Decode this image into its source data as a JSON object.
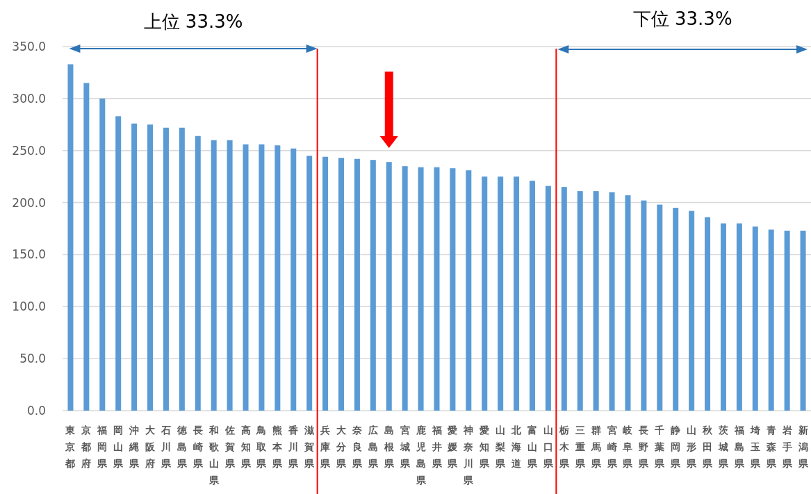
{
  "chart_data": {
    "type": "bar",
    "categories": [
      "東京都",
      "京都府",
      "福岡県",
      "岡山県",
      "沖縄県",
      "大阪府",
      "石川県",
      "徳島県",
      "長崎県",
      "和歌山県",
      "佐賀県",
      "高知県",
      "鳥取県",
      "熊本県",
      "香川県",
      "滋賀県",
      "兵庫県",
      "大分県",
      "奈良県",
      "広島県",
      "島根県",
      "宮城県",
      "鹿児島県",
      "福井県",
      "愛媛県",
      "神奈川県",
      "愛知県",
      "山梨県",
      "北海道",
      "富山県",
      "山口県",
      "栃木県",
      "三重県",
      "群馬県",
      "宮崎県",
      "岐阜県",
      "長野県",
      "千葉県",
      "静岡県",
      "山形県",
      "秋田県",
      "茨城県",
      "福島県",
      "埼玉県",
      "青森県",
      "岩手県",
      "新潟県"
    ],
    "values": [
      333,
      315,
      300,
      283,
      276,
      275,
      272,
      272,
      264,
      260,
      260,
      256,
      256,
      255,
      252,
      245,
      244,
      243,
      242,
      241,
      239,
      235,
      234,
      234,
      233,
      231,
      225,
      225,
      225,
      221,
      216,
      215,
      211,
      211,
      210,
      207,
      202,
      198,
      195,
      192,
      186,
      180,
      180,
      177,
      174,
      173,
      173
    ],
    "color": "#5b9bd5",
    "ylim": [
      0,
      350
    ],
    "yticks": [
      {
        "value": 0,
        "label": "0.0"
      },
      {
        "value": 50,
        "label": "50.0"
      },
      {
        "value": 100,
        "label": "100.0"
      },
      {
        "value": 150,
        "label": "150.0"
      },
      {
        "value": 200,
        "label": "200.0"
      },
      {
        "value": 250,
        "label": "250.0"
      },
      {
        "value": 300,
        "label": "300.0"
      },
      {
        "value": 350,
        "label": "350.0"
      }
    ],
    "grid": "y",
    "annotations": [
      "上位 33.3%",
      "下位 33.3%"
    ]
  }
}
